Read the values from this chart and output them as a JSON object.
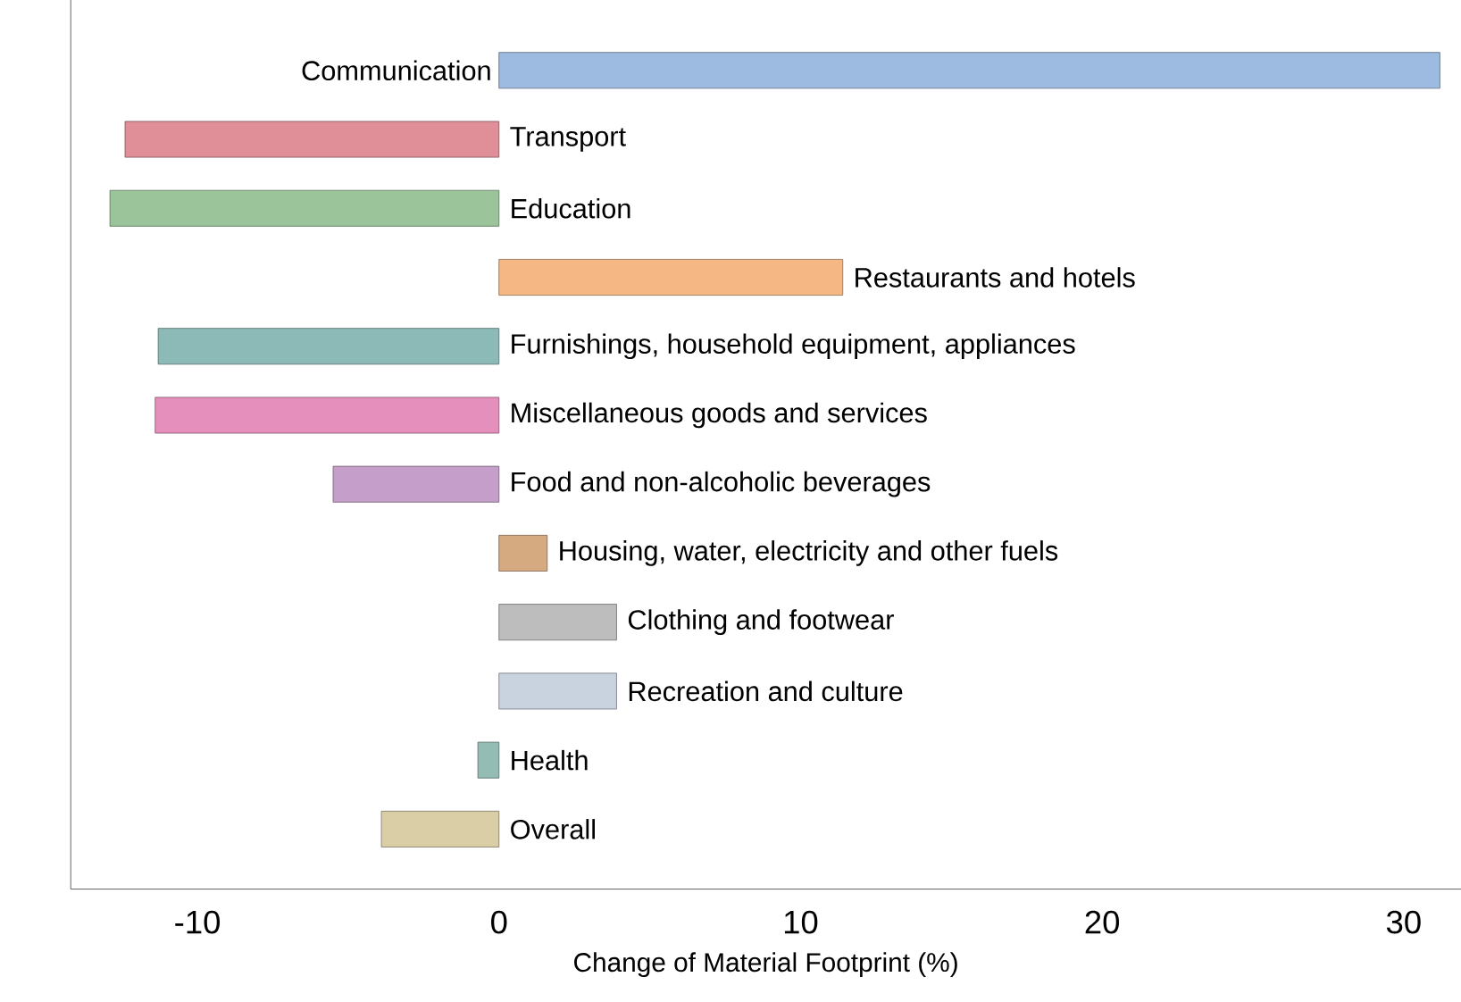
{
  "chart_data": {
    "type": "bar",
    "orientation": "horizontal",
    "xlabel": "Change of Material Footprint (%)",
    "categories": [
      "Communication",
      "Transport",
      "Education",
      "Restaurants and hotels",
      "Furnishings, household equipment, appliances",
      "Miscellaneous goods and services",
      "Food and non-alcoholic beverages",
      "Housing, water, electricity and other fuels",
      "Clothing and footwear",
      "Recreation and culture",
      "Health",
      "Overall"
    ],
    "values": [
      31.2,
      -12.4,
      -12.9,
      11.4,
      -11.3,
      -11.4,
      -5.5,
      1.6,
      3.9,
      3.9,
      -0.7,
      -3.9
    ],
    "colors": [
      "#9dbae0",
      "#e08f98",
      "#9bc49a",
      "#f5b784",
      "#8cbab7",
      "#e590bc",
      "#c59fc9",
      "#d5aa80",
      "#bdbdbd",
      "#c9d2df",
      "#93bcb4",
      "#d9cea5"
    ],
    "xlim": [
      -14.2,
      31.9
    ],
    "xticks": [
      -10,
      0,
      10,
      20,
      30
    ],
    "grid": false
  }
}
